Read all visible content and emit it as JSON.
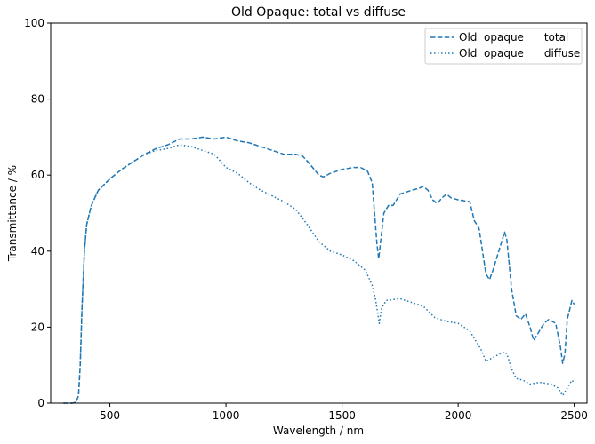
{
  "chart_data": {
    "type": "line",
    "title": "Old Opaque: total vs diffuse",
    "xlabel": "Wavelength / nm",
    "ylabel": "Transmittance / %",
    "xlim": [
      245,
      2555
    ],
    "ylim": [
      0,
      100
    ],
    "x_ticks": [
      500,
      1000,
      1500,
      2000,
      2500
    ],
    "y_ticks": [
      0,
      20,
      40,
      60,
      80,
      100
    ],
    "grid": false,
    "legend_position": "top-right",
    "series": [
      {
        "name": "Old  opaque      total",
        "color": "#1f77b4",
        "linestyle": "dashed",
        "points": [
          [
            300,
            0
          ],
          [
            340,
            0
          ],
          [
            355,
            0.3
          ],
          [
            365,
            2
          ],
          [
            372,
            10
          ],
          [
            380,
            25
          ],
          [
            390,
            40
          ],
          [
            400,
            47
          ],
          [
            420,
            52
          ],
          [
            450,
            56
          ],
          [
            500,
            59
          ],
          [
            550,
            61.5
          ],
          [
            600,
            63.5
          ],
          [
            650,
            65.5
          ],
          [
            700,
            67
          ],
          [
            750,
            68
          ],
          [
            800,
            69.5
          ],
          [
            850,
            69.5
          ],
          [
            900,
            70
          ],
          [
            950,
            69.5
          ],
          [
            1000,
            70
          ],
          [
            1050,
            69
          ],
          [
            1100,
            68.5
          ],
          [
            1150,
            67.5
          ],
          [
            1200,
            66.5
          ],
          [
            1250,
            65.5
          ],
          [
            1300,
            65.5
          ],
          [
            1330,
            65
          ],
          [
            1360,
            63
          ],
          [
            1380,
            61.5
          ],
          [
            1400,
            60
          ],
          [
            1420,
            59.5
          ],
          [
            1450,
            60.5
          ],
          [
            1500,
            61.5
          ],
          [
            1550,
            62
          ],
          [
            1580,
            62
          ],
          [
            1610,
            61
          ],
          [
            1630,
            58
          ],
          [
            1640,
            50
          ],
          [
            1650,
            42
          ],
          [
            1658,
            38
          ],
          [
            1665,
            42
          ],
          [
            1680,
            50
          ],
          [
            1700,
            52
          ],
          [
            1720,
            52
          ],
          [
            1750,
            55
          ],
          [
            1800,
            56
          ],
          [
            1830,
            56.5
          ],
          [
            1850,
            57
          ],
          [
            1870,
            56
          ],
          [
            1890,
            53.5
          ],
          [
            1910,
            52.5
          ],
          [
            1930,
            54
          ],
          [
            1950,
            55
          ],
          [
            1970,
            54
          ],
          [
            2000,
            53.5
          ],
          [
            2050,
            53
          ],
          [
            2070,
            48
          ],
          [
            2090,
            46
          ],
          [
            2100,
            42
          ],
          [
            2120,
            34
          ],
          [
            2135,
            32.5
          ],
          [
            2150,
            35
          ],
          [
            2170,
            39
          ],
          [
            2190,
            43
          ],
          [
            2200,
            45
          ],
          [
            2210,
            43
          ],
          [
            2230,
            30
          ],
          [
            2250,
            23
          ],
          [
            2270,
            22
          ],
          [
            2290,
            23.5
          ],
          [
            2310,
            20
          ],
          [
            2325,
            16.5
          ],
          [
            2340,
            18
          ],
          [
            2370,
            21
          ],
          [
            2390,
            22
          ],
          [
            2420,
            21
          ],
          [
            2440,
            15
          ],
          [
            2450,
            10.5
          ],
          [
            2460,
            13
          ],
          [
            2470,
            22
          ],
          [
            2490,
            27
          ],
          [
            2500,
            26
          ]
        ]
      },
      {
        "name": "Old  opaque      diffuse",
        "color": "#1f77b4",
        "linestyle": "dotted",
        "points": [
          [
            300,
            0
          ],
          [
            340,
            0
          ],
          [
            355,
            0.3
          ],
          [
            365,
            2
          ],
          [
            372,
            10
          ],
          [
            380,
            25
          ],
          [
            390,
            40
          ],
          [
            400,
            47
          ],
          [
            420,
            52
          ],
          [
            450,
            56
          ],
          [
            500,
            59
          ],
          [
            550,
            61.5
          ],
          [
            600,
            63.5
          ],
          [
            650,
            65.5
          ],
          [
            700,
            66.5
          ],
          [
            750,
            67
          ],
          [
            800,
            68
          ],
          [
            850,
            67.5
          ],
          [
            900,
            66.5
          ],
          [
            950,
            65.5
          ],
          [
            1000,
            62
          ],
          [
            1050,
            60.5
          ],
          [
            1100,
            58
          ],
          [
            1150,
            56
          ],
          [
            1200,
            54.5
          ],
          [
            1250,
            53
          ],
          [
            1300,
            51
          ],
          [
            1350,
            47
          ],
          [
            1400,
            42.5
          ],
          [
            1450,
            40
          ],
          [
            1500,
            39
          ],
          [
            1550,
            37.5
          ],
          [
            1600,
            35
          ],
          [
            1630,
            31
          ],
          [
            1645,
            27
          ],
          [
            1660,
            21
          ],
          [
            1670,
            25
          ],
          [
            1690,
            27
          ],
          [
            1750,
            27.5
          ],
          [
            1800,
            26.5
          ],
          [
            1850,
            25.5
          ],
          [
            1900,
            22.5
          ],
          [
            1950,
            21.5
          ],
          [
            2000,
            21
          ],
          [
            2050,
            19
          ],
          [
            2080,
            16
          ],
          [
            2100,
            14
          ],
          [
            2120,
            11
          ],
          [
            2150,
            12
          ],
          [
            2180,
            13
          ],
          [
            2200,
            13.5
          ],
          [
            2210,
            13
          ],
          [
            2230,
            9
          ],
          [
            2250,
            6.5
          ],
          [
            2280,
            6
          ],
          [
            2310,
            5
          ],
          [
            2350,
            5.5
          ],
          [
            2400,
            5
          ],
          [
            2430,
            4
          ],
          [
            2450,
            2
          ],
          [
            2470,
            4
          ],
          [
            2490,
            6
          ],
          [
            2500,
            5.5
          ]
        ]
      }
    ]
  }
}
